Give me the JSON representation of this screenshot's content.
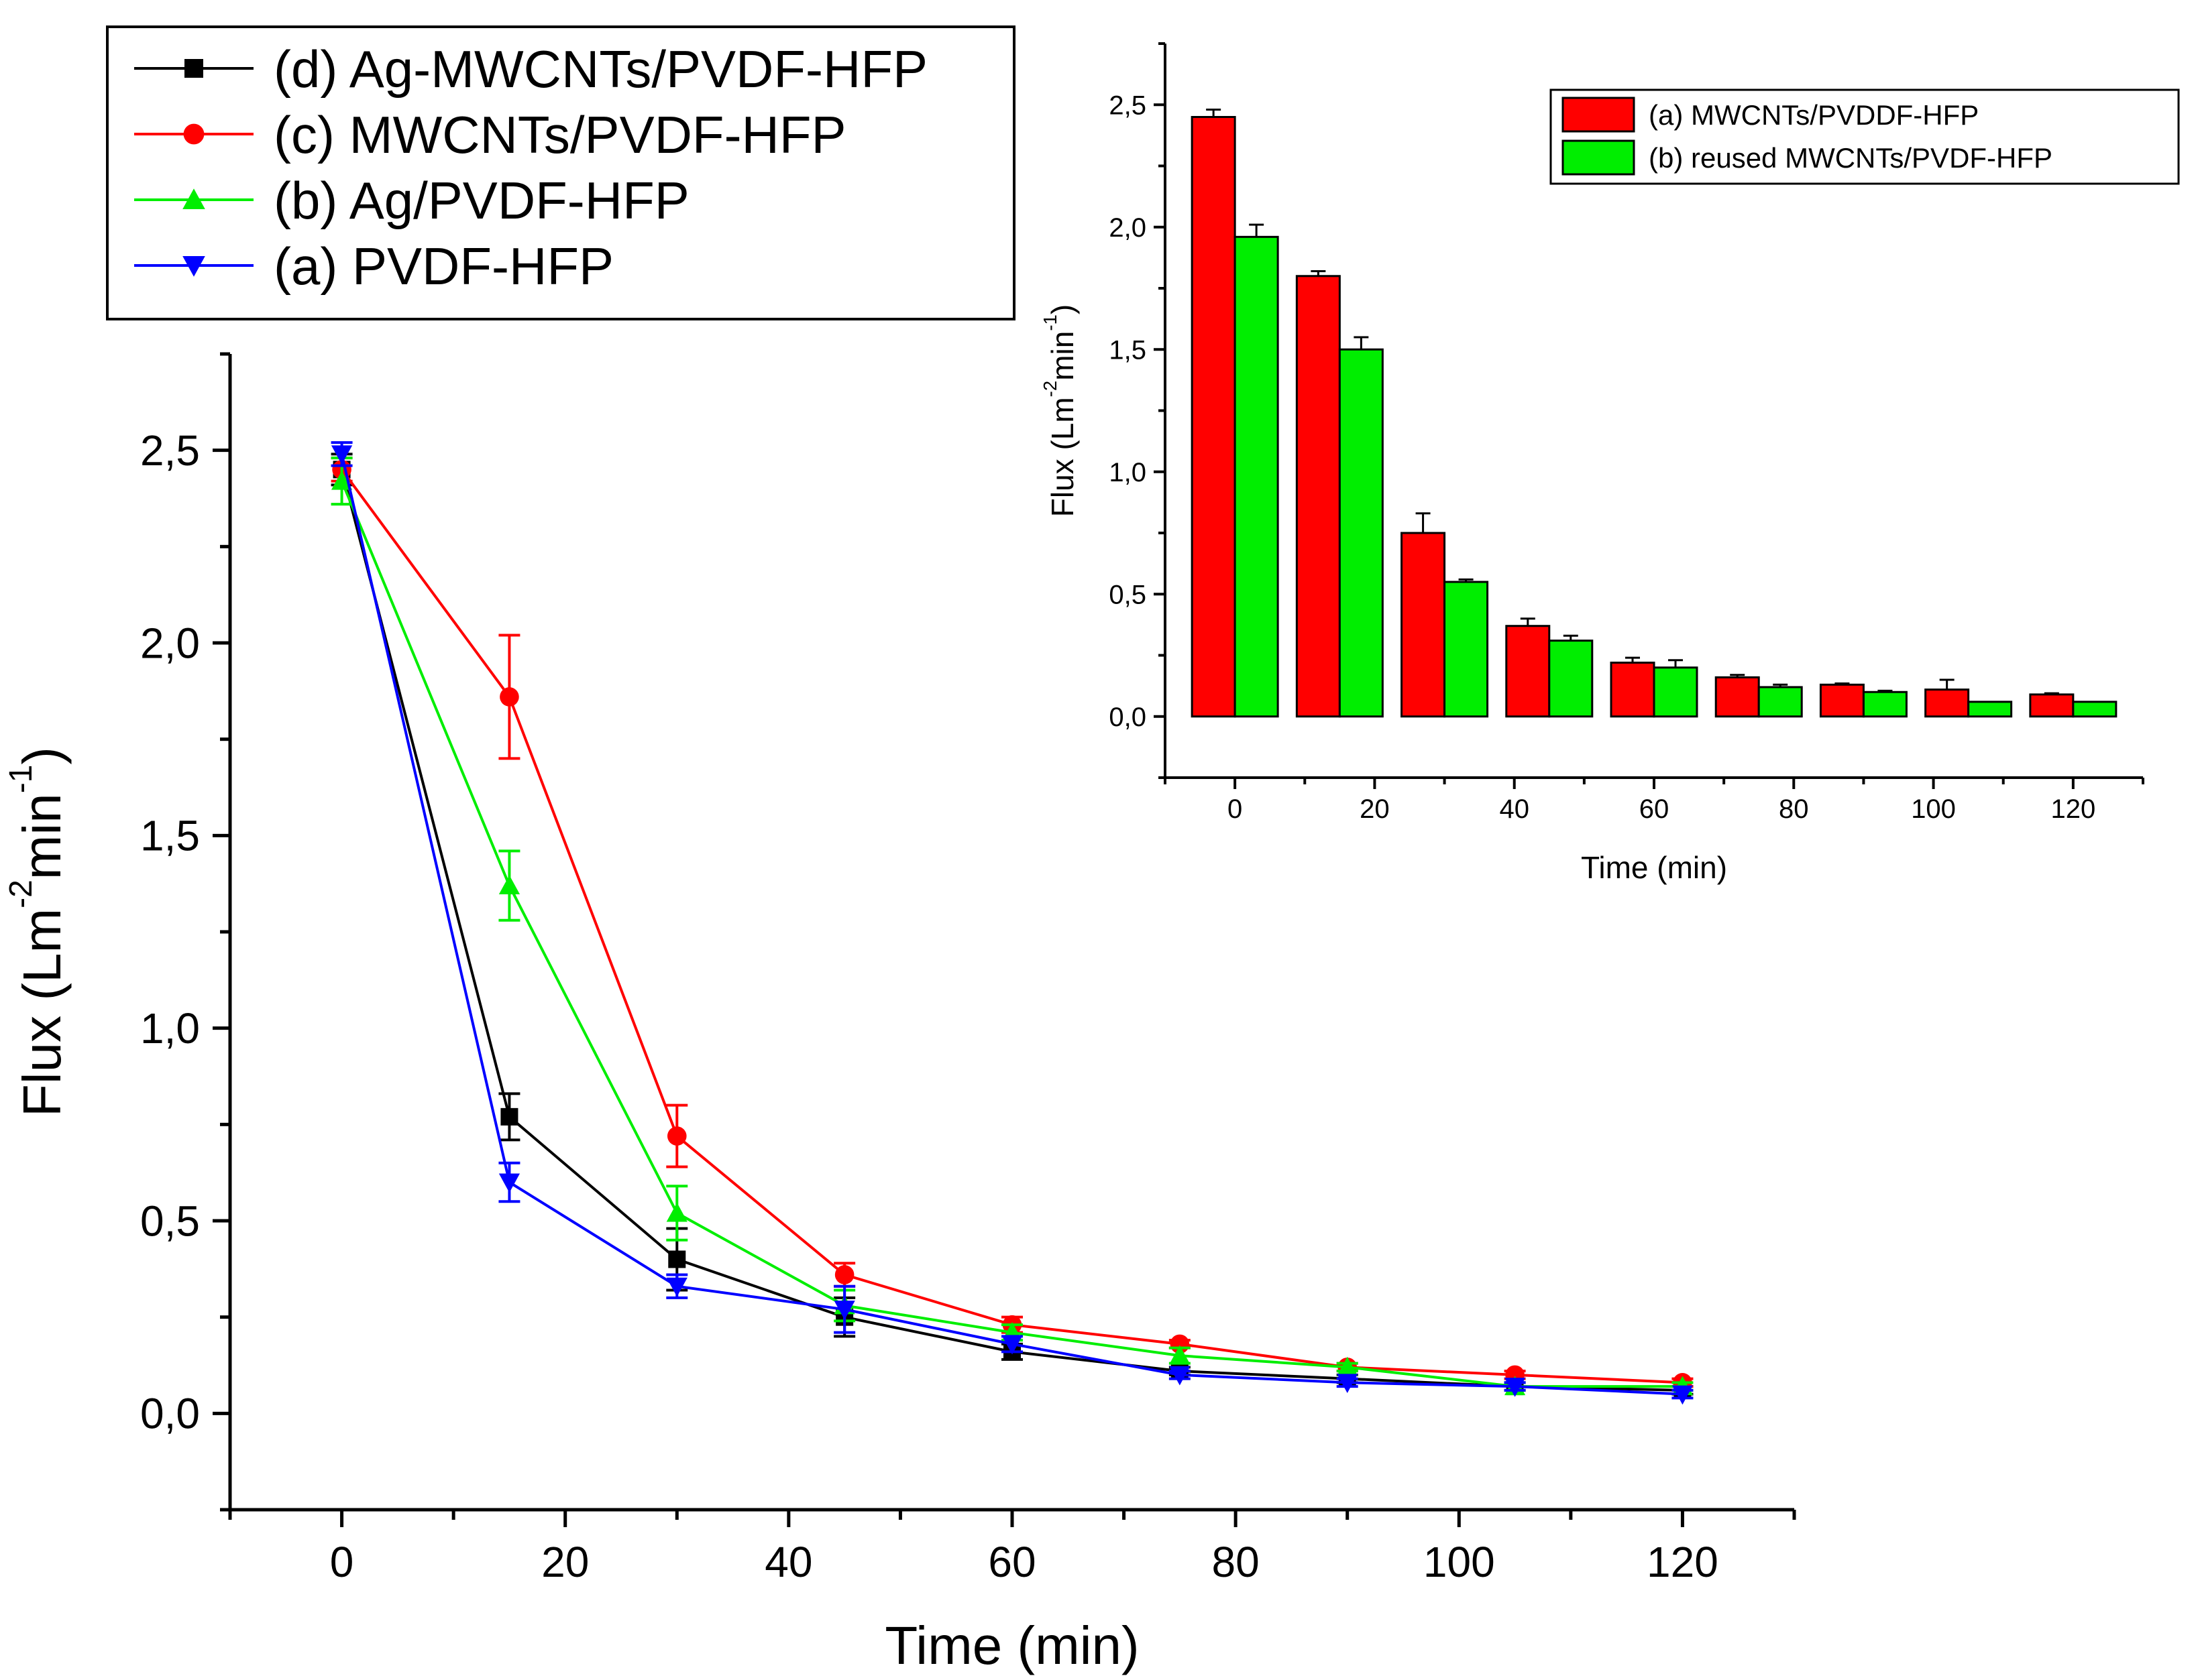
{
  "chart_data": [
    {
      "type": "line",
      "xlabel": "Time (min)",
      "ylabel": {
        "base": "Flux (Lm",
        "sup1": "-2",
        "mid": "min",
        "sup2": "-1",
        "end": ")"
      },
      "xlim": [
        -10,
        130
      ],
      "ylim": [
        -0.25,
        2.75
      ],
      "x_ticks": [
        0,
        20,
        40,
        60,
        80,
        100,
        120
      ],
      "x_tick_labels": [
        "0",
        "20",
        "40",
        "60",
        "80",
        "100",
        "120"
      ],
      "y_ticks": [
        0,
        0.5,
        1.0,
        1.5,
        2.0,
        2.5
      ],
      "y_tick_labels": [
        "0,0",
        "0,5",
        "1,0",
        "1,5",
        "2,0",
        "2,5"
      ],
      "x": [
        0,
        15,
        30,
        45,
        60,
        75,
        90,
        105,
        120
      ],
      "legend": {
        "position": "top-left"
      },
      "series": [
        {
          "name": "(d) Ag-MWCNTs/PVDF-HFP",
          "color": "#000000",
          "marker": "square",
          "values": [
            2.45,
            0.77,
            0.4,
            0.25,
            0.16,
            0.11,
            0.09,
            0.07,
            0.06
          ],
          "errors": [
            0.04,
            0.06,
            0.08,
            0.05,
            0.02,
            0.01,
            0.01,
            0.01,
            0.01
          ]
        },
        {
          "name": "(c) MWCNTs/PVDF-HFP",
          "color": "#ff0000",
          "marker": "circle",
          "values": [
            2.45,
            1.86,
            0.72,
            0.36,
            0.23,
            0.18,
            0.12,
            0.1,
            0.08
          ],
          "errors": [
            0.03,
            0.16,
            0.08,
            0.03,
            0.02,
            0.01,
            0.01,
            0.01,
            0.01
          ]
        },
        {
          "name": "(b) Ag/PVDF-HFP",
          "color": "#00ee00",
          "marker": "triangle-up",
          "values": [
            2.42,
            1.37,
            0.52,
            0.28,
            0.21,
            0.15,
            0.12,
            0.07,
            0.07
          ],
          "errors": [
            0.06,
            0.09,
            0.07,
            0.04,
            0.02,
            0.02,
            0.01,
            0.01,
            0.01
          ]
        },
        {
          "name": "(a) PVDF-HFP",
          "color": "#0000ff",
          "marker": "triangle-down",
          "values": [
            2.49,
            0.6,
            0.33,
            0.27,
            0.18,
            0.1,
            0.08,
            0.07,
            0.05
          ],
          "errors": [
            0.03,
            0.05,
            0.03,
            0.06,
            0.02,
            0.01,
            0.01,
            0.01,
            0.01
          ]
        }
      ]
    },
    {
      "type": "bar",
      "xlabel": "Time (min)",
      "ylabel": {
        "base": "Flux (Lm",
        "sup1": "-2",
        "mid": "min",
        "sup2": "-1",
        "end": ")"
      },
      "xlim": [
        -10,
        130
      ],
      "ylim": [
        -0.25,
        2.75
      ],
      "x_ticks": [
        0,
        20,
        40,
        60,
        80,
        100,
        120
      ],
      "x_tick_labels": [
        "0",
        "20",
        "40",
        "60",
        "80",
        "100",
        "120"
      ],
      "y_ticks": [
        0,
        0.5,
        1.0,
        1.5,
        2.0,
        2.5
      ],
      "y_tick_labels": [
        "0,0",
        "0,5",
        "1,0",
        "1,5",
        "2,0",
        "2,5"
      ],
      "x": [
        0,
        15,
        30,
        45,
        60,
        75,
        90,
        105,
        120
      ],
      "legend": {
        "position": "top-right"
      },
      "series": [
        {
          "name": "(a) MWCNTs/PVDDF-HFP",
          "color": "#ff0000",
          "values": [
            2.45,
            1.8,
            0.75,
            0.37,
            0.22,
            0.16,
            0.13,
            0.11,
            0.09
          ],
          "errors": [
            0.03,
            0.02,
            0.08,
            0.03,
            0.02,
            0.01,
            0.005,
            0.04,
            0.005
          ]
        },
        {
          "name": "(b) reused MWCNTs/PVDF-HFP",
          "color": "#00ee00",
          "values": [
            1.96,
            1.5,
            0.55,
            0.31,
            0.2,
            0.12,
            0.1,
            0.06,
            0.06
          ],
          "errors": [
            0.05,
            0.05,
            0.01,
            0.02,
            0.03,
            0.01,
            0.005,
            0.0,
            0.0
          ]
        }
      ]
    }
  ]
}
